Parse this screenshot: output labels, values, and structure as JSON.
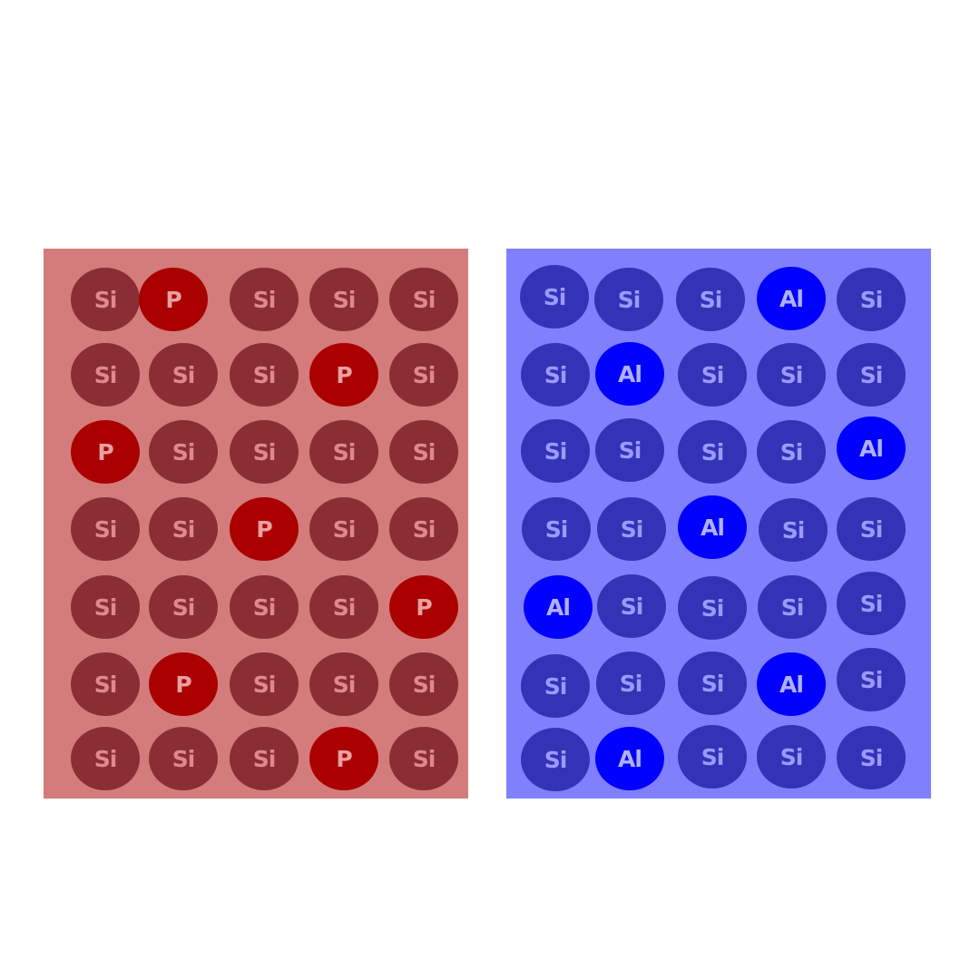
{
  "panels": [
    {
      "name": "p-doped-silicon-lattice",
      "colors": {
        "panel": "#d47c7c",
        "host_atom": "#8a2e33",
        "dopant_atom": "#aa0000",
        "host_label": "#e0888a",
        "dopant_label": "#e8a0a0"
      },
      "dopant": "P",
      "rows": [
        [
          "Si",
          "P",
          "Si",
          "Si",
          "Si"
        ],
        [
          "Si",
          "Si",
          "Si",
          "P",
          "Si"
        ],
        [
          "P",
          "Si",
          "Si",
          "Si",
          "Si"
        ],
        [
          "Si",
          "Si",
          "P",
          "Si",
          "Si"
        ],
        [
          "Si",
          "Si",
          "Si",
          "Si",
          "P"
        ],
        [
          "Si",
          "P",
          "Si",
          "Si",
          "Si"
        ],
        [
          "Si",
          "Si",
          "Si",
          "P",
          "Si"
        ]
      ]
    },
    {
      "name": "al-doped-silicon-lattice",
      "colors": {
        "panel": "#8080ff",
        "host_atom": "#3333b8",
        "dopant_atom": "#0000ff",
        "host_label": "#9a9aff",
        "dopant_label": "#b0b0ff"
      },
      "dopant": "Al",
      "rows": [
        [
          "Si",
          "Si",
          "Si",
          "Al",
          "Si"
        ],
        [
          "Si",
          "Al",
          "Si",
          "Si",
          "Si"
        ],
        [
          "Si",
          "Si",
          "Si",
          "Si",
          "Al"
        ],
        [
          "Si",
          "Si",
          "Al",
          "Si",
          "Si"
        ],
        [
          "Al",
          "Si",
          "Si",
          "Si",
          "Si"
        ],
        [
          "Si",
          "Si",
          "Si",
          "Al",
          "Si"
        ],
        [
          "Si",
          "Al",
          "Si",
          "Si",
          "Si"
        ]
      ]
    }
  ]
}
